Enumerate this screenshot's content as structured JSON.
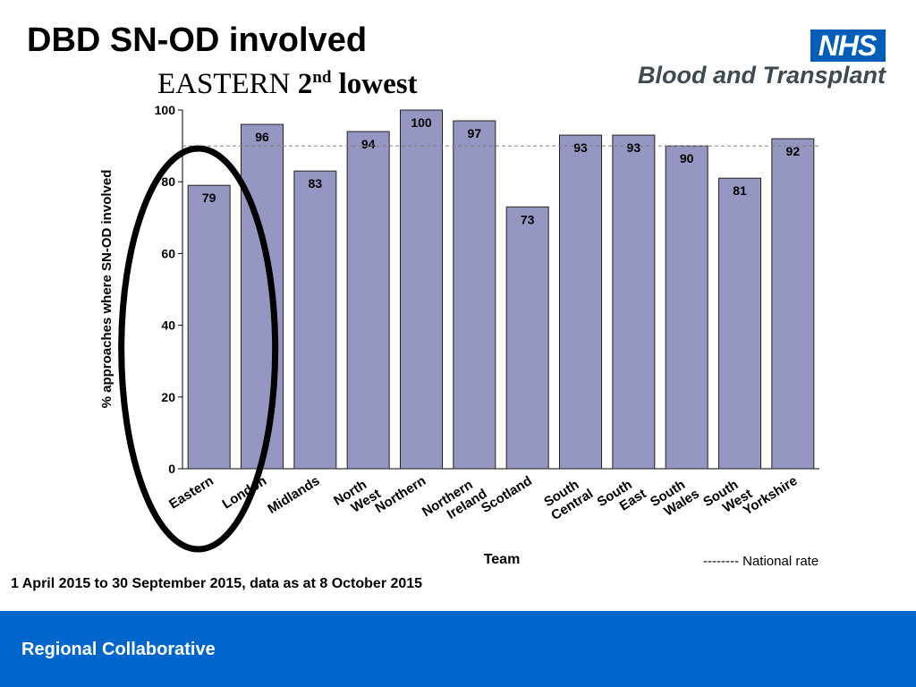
{
  "slide": {
    "title": "DBD SN-OD involved",
    "subtitle_region": "EASTERN",
    "subtitle_rank": "2",
    "subtitle_suffix": "nd",
    "subtitle_word": "lowest",
    "footnote": "1 April 2015 to 30 September 2015, data as at 8 October 2015",
    "footer": "Regional Collaborative"
  },
  "logo": {
    "badge": "NHS",
    "text": "Blood and Transplant"
  },
  "legend": {
    "national_rate": "--------  National rate"
  },
  "chart_data": {
    "type": "bar",
    "categories": [
      [
        "Eastern"
      ],
      [
        "London"
      ],
      [
        "Midlands"
      ],
      [
        "North",
        "West"
      ],
      [
        "Northern"
      ],
      [
        "Northern",
        "Ireland"
      ],
      [
        "Scotland"
      ],
      [
        "South",
        "Central"
      ],
      [
        "South",
        "East"
      ],
      [
        "South",
        "Wales"
      ],
      [
        "South",
        "West"
      ],
      [
        "Yorkshire"
      ]
    ],
    "values": [
      79,
      96,
      83,
      94,
      100,
      97,
      73,
      93,
      93,
      90,
      81,
      92
    ],
    "national_rate": 90,
    "xlabel": "Team",
    "ylabel": "% approaches where SN-OD involved",
    "ylim": [
      0,
      100
    ],
    "yticks": [
      0,
      20,
      40,
      60,
      80,
      100
    ],
    "highlight_category": "Eastern",
    "colors": {
      "bar": "#9696c3",
      "bar_outline": "#222222",
      "national_line": "#808080",
      "highlight": "#000000"
    }
  }
}
